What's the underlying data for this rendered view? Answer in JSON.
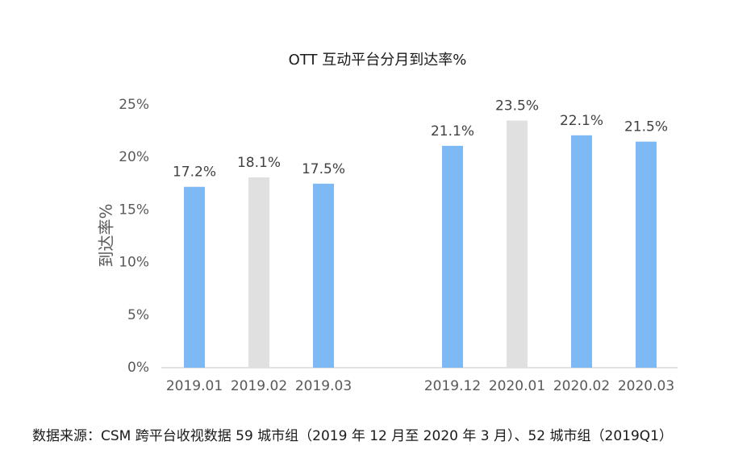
{
  "chart_data": {
    "type": "bar",
    "title": "OTT 互动平台分月到达率%",
    "xlabel": "",
    "ylabel": "到达率%",
    "ylim": [
      0,
      25
    ],
    "yticks": [
      "0%",
      "5%",
      "10%",
      "15%",
      "20%",
      "25%"
    ],
    "grid": false,
    "legend": "none",
    "categories": [
      "2019.01",
      "2019.02",
      "2019.03",
      "2019.12",
      "2020.01",
      "2020.02",
      "2020.03"
    ],
    "values": [
      17.2,
      18.1,
      17.5,
      21.1,
      23.5,
      22.1,
      21.5
    ],
    "value_labels": [
      "17.2%",
      "18.1%",
      "17.5%",
      "21.1%",
      "23.5%",
      "22.1%",
      "21.5%"
    ],
    "bar_colors": [
      "#7cb9f5",
      "#e0e0e0",
      "#7cb9f5",
      "#7cb9f5",
      "#e0e0e0",
      "#7cb9f5",
      "#7cb9f5"
    ]
  },
  "footer": {
    "source": "数据来源：CSM 跨平台收视数据 59 城市组（2019 年 12 月至 2020 年 3 月）、52 城市组（2019Q1）"
  }
}
